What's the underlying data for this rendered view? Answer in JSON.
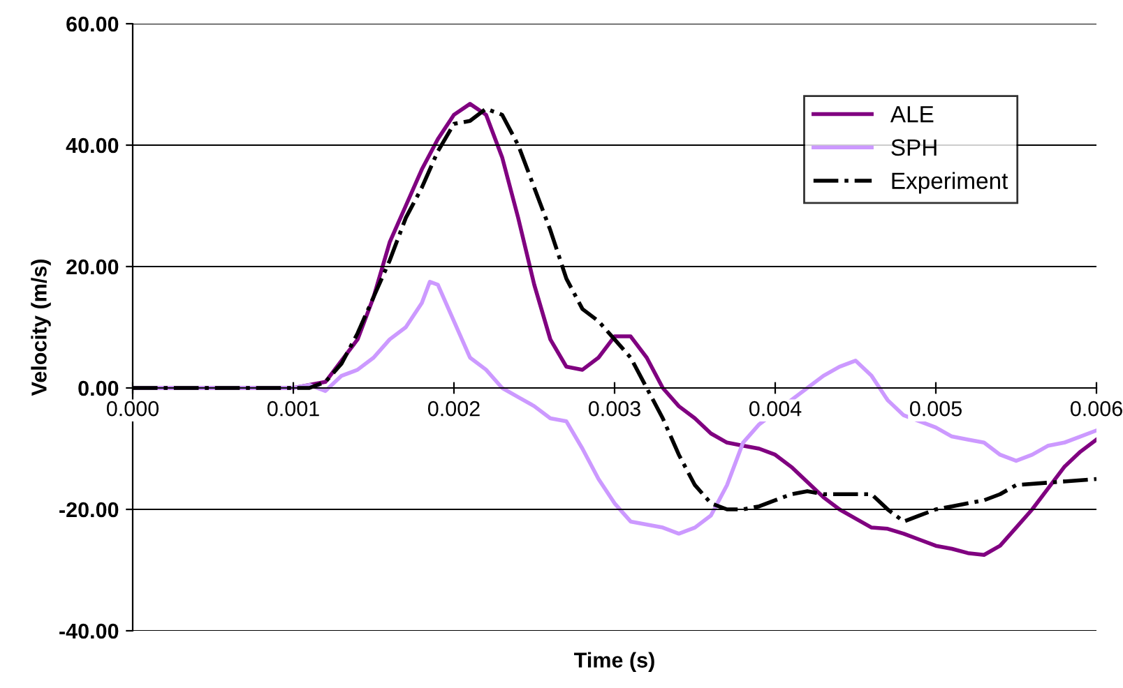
{
  "chart_data": {
    "type": "line",
    "xlabel": "Time (s)",
    "ylabel": "Velocity (m/s)",
    "xlim": [
      0,
      0.006
    ],
    "ylim": [
      -40,
      60
    ],
    "xticks": [
      {
        "value": 0,
        "label": "0.000"
      },
      {
        "value": 0.001,
        "label": "0.001"
      },
      {
        "value": 0.002,
        "label": "0.002"
      },
      {
        "value": 0.003,
        "label": "0.003"
      },
      {
        "value": 0.004,
        "label": "0.004"
      },
      {
        "value": 0.005,
        "label": "0.005"
      },
      {
        "value": 0.006,
        "label": "0.006"
      }
    ],
    "yticks": [
      {
        "value": -40,
        "label": "-40.00"
      },
      {
        "value": -20,
        "label": "-20.00"
      },
      {
        "value": 0,
        "label": "0.00"
      },
      {
        "value": 20,
        "label": "20.00"
      },
      {
        "value": 40,
        "label": "40.00"
      },
      {
        "value": 60,
        "label": "60.00"
      }
    ],
    "grid": "y",
    "legend": "top right",
    "series": [
      {
        "name": "ALE",
        "color": "#800080",
        "line_style": "solid",
        "x": [
          0,
          0.001,
          0.0012,
          0.0014,
          0.0015,
          0.0016,
          0.0017,
          0.0018,
          0.0019,
          0.002,
          0.0021,
          0.0022,
          0.0023,
          0.0024,
          0.0025,
          0.0026,
          0.0027,
          0.0028,
          0.0029,
          0.003,
          0.0031,
          0.0032,
          0.0033,
          0.0034,
          0.0035,
          0.0036,
          0.0037,
          0.0038,
          0.0039,
          0.004,
          0.0041,
          0.0042,
          0.0043,
          0.0044,
          0.0045,
          0.0046,
          0.0047,
          0.0048,
          0.0049,
          0.005,
          0.0051,
          0.0052,
          0.0053,
          0.0054,
          0.0055,
          0.0056,
          0.0057,
          0.0058,
          0.0059,
          0.006
        ],
        "values": [
          0,
          0,
          1,
          8,
          15,
          24,
          30,
          36,
          41,
          45,
          46.8,
          45,
          38,
          28,
          17,
          8,
          3.5,
          3,
          5,
          8.5,
          8.5,
          5,
          0,
          -3,
          -5,
          -7.5,
          -9,
          -9.5,
          -10,
          -11,
          -13,
          -15.5,
          -18,
          -20,
          -21.5,
          -23,
          -23.2,
          -24,
          -25,
          -26,
          -26.5,
          -27.2,
          -27.5,
          -26,
          -23,
          -20,
          -16.5,
          -13,
          -10.5,
          -8.5
        ]
      },
      {
        "name": "SPH",
        "color": "#cc99ff",
        "line_style": "solid",
        "x": [
          0,
          0.001,
          0.0011,
          0.0012,
          0.0013,
          0.0014,
          0.0015,
          0.0016,
          0.0017,
          0.0018,
          0.00185,
          0.0019,
          0.002,
          0.0021,
          0.0022,
          0.0023,
          0.0024,
          0.0025,
          0.0026,
          0.0027,
          0.0028,
          0.0029,
          0.003,
          0.0031,
          0.0032,
          0.0033,
          0.0034,
          0.0035,
          0.0036,
          0.0037,
          0.0038,
          0.0039,
          0.004,
          0.0041,
          0.0042,
          0.0043,
          0.0044,
          0.0045,
          0.0046,
          0.0047,
          0.0048,
          0.0049,
          0.005,
          0.0051,
          0.0052,
          0.0053,
          0.0054,
          0.0055,
          0.0056,
          0.0057,
          0.0058,
          0.0059,
          0.006
        ],
        "values": [
          0,
          0,
          0.5,
          -0.5,
          2,
          3,
          5,
          8,
          10,
          14,
          17.5,
          17,
          11,
          5,
          3,
          0,
          -1.5,
          -3,
          -5,
          -5.5,
          -10,
          -15,
          -19,
          -22,
          -22.5,
          -23,
          -24,
          -23,
          -21,
          -16,
          -9,
          -6,
          -4,
          -2,
          0,
          2,
          3.5,
          4.5,
          2,
          -2,
          -4.5,
          -5.5,
          -6.5,
          -8,
          -8.5,
          -9,
          -11,
          -12,
          -11,
          -9.5,
          -9,
          -8,
          -7
        ]
      },
      {
        "name": "Experiment",
        "color": "#000000",
        "line_style": "dashdot",
        "x": [
          0,
          0.001,
          0.0011,
          0.0012,
          0.0013,
          0.0014,
          0.0015,
          0.0016,
          0.0017,
          0.0018,
          0.0019,
          0.002,
          0.0021,
          0.0022,
          0.0023,
          0.0024,
          0.0025,
          0.0026,
          0.0027,
          0.0028,
          0.0029,
          0.003,
          0.0031,
          0.0032,
          0.0033,
          0.0034,
          0.0035,
          0.0036,
          0.0037,
          0.0038,
          0.0039,
          0.004,
          0.0041,
          0.0042,
          0.0043,
          0.0044,
          0.0045,
          0.0046,
          0.0047,
          0.0048,
          0.0049,
          0.005,
          0.0051,
          0.0052,
          0.0053,
          0.0054,
          0.0055,
          0.006
        ],
        "values": [
          0,
          0,
          0,
          1,
          4,
          9,
          15,
          21,
          28,
          33,
          39,
          43.5,
          44,
          46,
          45,
          40,
          33,
          26,
          18,
          13,
          11,
          8,
          5,
          0,
          -5,
          -11,
          -16,
          -19,
          -20,
          -20,
          -19.5,
          -18.5,
          -17.5,
          -17,
          -17.5,
          -17.5,
          -17.5,
          -17.5,
          -20,
          -22,
          -21,
          -20,
          -19.5,
          -19,
          -18.5,
          -17.5,
          -16,
          -15
        ]
      }
    ]
  }
}
